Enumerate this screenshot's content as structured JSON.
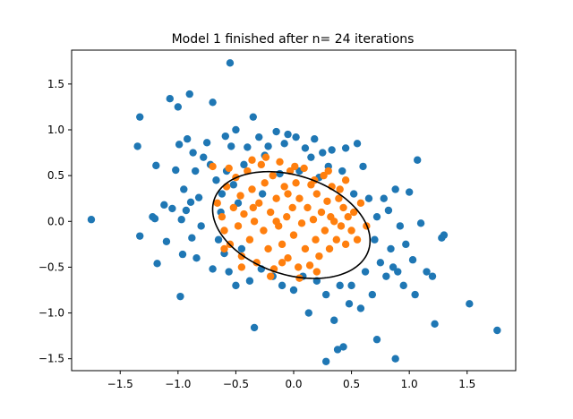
{
  "chart_data": {
    "type": "scatter",
    "title": "Model 1 finished after n= 24 iterations",
    "xlabel": "",
    "ylabel": "",
    "xlim": [
      -1.92,
      1.92
    ],
    "ylim": [
      -1.63,
      1.87
    ],
    "xticks": [
      -1.5,
      -1.0,
      -0.5,
      0.0,
      0.5,
      1.0,
      1.5
    ],
    "xtick_labels": [
      "−1.5",
      "−1.0",
      "−0.5",
      "0.0",
      "0.5",
      "1.0",
      "1.5"
    ],
    "yticks": [
      -1.5,
      -1.0,
      -0.5,
      0.0,
      0.5,
      1.0,
      1.5
    ],
    "ytick_labels": [
      "−1.5",
      "−1.0",
      "−0.5",
      "0.0",
      "0.5",
      "1.0",
      "1.5"
    ],
    "grid": false,
    "legend": false,
    "colors": {
      "series_1": "#1f77b4",
      "series_2": "#ff7f0e",
      "ellipse": "#000000"
    },
    "series": [
      {
        "marker": "circle",
        "color": "#1f77b4",
        "points": [
          [
            -1.75,
            0.02
          ],
          [
            -1.35,
            0.82
          ],
          [
            -1.33,
            1.14
          ],
          [
            -1.33,
            -0.16
          ],
          [
            -1.22,
            0.05
          ],
          [
            -1.2,
            0.03
          ],
          [
            -1.19,
            0.61
          ],
          [
            -1.18,
            -0.46
          ],
          [
            -1.12,
            0.18
          ],
          [
            -1.1,
            -0.22
          ],
          [
            -1.07,
            1.34
          ],
          [
            -1.05,
            0.14
          ],
          [
            -1.02,
            0.56
          ],
          [
            -1.0,
            1.25
          ],
          [
            -0.99,
            0.84
          ],
          [
            -0.98,
            -0.82
          ],
          [
            -0.97,
            0.02
          ],
          [
            -0.96,
            -0.36
          ],
          [
            -0.95,
            0.35
          ],
          [
            -0.93,
            0.12
          ],
          [
            -0.92,
            0.9
          ],
          [
            -0.9,
            1.39
          ],
          [
            -0.89,
            0.21
          ],
          [
            -0.88,
            -0.18
          ],
          [
            -0.87,
            0.75
          ],
          [
            -0.85,
            0.55
          ],
          [
            -0.84,
            -0.4
          ],
          [
            -0.82,
            0.26
          ],
          [
            -0.8,
            -0.05
          ],
          [
            -0.78,
            0.7
          ],
          [
            -0.75,
            0.86
          ],
          [
            -0.72,
            0.62
          ],
          [
            -0.7,
            1.3
          ],
          [
            -0.7,
            -0.52
          ],
          [
            -0.67,
            0.45
          ],
          [
            -0.65,
            -0.2
          ],
          [
            -0.63,
            0.1
          ],
          [
            -0.62,
            0.3
          ],
          [
            -0.6,
            -0.35
          ],
          [
            -0.59,
            0.93
          ],
          [
            -0.58,
            0.55
          ],
          [
            -0.56,
            -0.55
          ],
          [
            -0.55,
            1.73
          ],
          [
            -0.54,
            0.82
          ],
          [
            -0.52,
            0.4
          ],
          [
            -0.5,
            -0.7
          ],
          [
            -0.5,
            1.0
          ],
          [
            -0.48,
            0.2
          ],
          [
            -0.45,
            -0.3
          ],
          [
            -0.43,
            0.62
          ],
          [
            -0.4,
            0.81
          ],
          [
            -0.38,
            -0.65
          ],
          [
            -0.35,
            1.14
          ],
          [
            -0.34,
            -1.16
          ],
          [
            -0.3,
            0.92
          ],
          [
            -0.28,
            -0.52
          ],
          [
            -0.27,
            0.3
          ],
          [
            -0.25,
            0.72
          ],
          [
            -0.22,
            0.82
          ],
          [
            -0.18,
            -0.6
          ],
          [
            -0.15,
            0.98
          ],
          [
            -0.12,
            0.52
          ],
          [
            -0.1,
            -0.7
          ],
          [
            -0.08,
            0.85
          ],
          [
            -0.05,
            0.95
          ],
          [
            0.0,
            -0.75
          ],
          [
            0.02,
            0.92
          ],
          [
            0.05,
            0.55
          ],
          [
            0.08,
            -0.6
          ],
          [
            0.1,
            0.8
          ],
          [
            0.13,
            -1.0
          ],
          [
            0.15,
            0.7
          ],
          [
            0.18,
            0.9
          ],
          [
            0.2,
            -0.65
          ],
          [
            0.22,
            0.48
          ],
          [
            0.25,
            0.75
          ],
          [
            0.28,
            -0.8
          ],
          [
            0.28,
            -1.53
          ],
          [
            0.3,
            0.6
          ],
          [
            0.33,
            0.78
          ],
          [
            0.35,
            -1.08
          ],
          [
            0.38,
            -1.4
          ],
          [
            0.4,
            -0.7
          ],
          [
            0.42,
            0.55
          ],
          [
            0.43,
            -1.37
          ],
          [
            0.45,
            0.8
          ],
          [
            0.48,
            -0.9
          ],
          [
            0.5,
            -0.7
          ],
          [
            0.52,
            0.3
          ],
          [
            0.55,
            0.85
          ],
          [
            0.58,
            -0.95
          ],
          [
            0.6,
            0.6
          ],
          [
            0.62,
            -0.55
          ],
          [
            0.65,
            0.25
          ],
          [
            0.68,
            -0.8
          ],
          [
            0.7,
            -0.2
          ],
          [
            0.72,
            0.05
          ],
          [
            0.72,
            -1.29
          ],
          [
            0.75,
            -0.45
          ],
          [
            0.78,
            0.25
          ],
          [
            0.8,
            -0.6
          ],
          [
            0.82,
            0.12
          ],
          [
            0.84,
            -0.3
          ],
          [
            0.86,
            -0.5
          ],
          [
            0.88,
            0.35
          ],
          [
            0.88,
            -1.5
          ],
          [
            0.9,
            -0.55
          ],
          [
            0.92,
            -0.05
          ],
          [
            0.95,
            -0.7
          ],
          [
            0.97,
            -0.25
          ],
          [
            1.0,
            0.32
          ],
          [
            1.03,
            -0.42
          ],
          [
            1.05,
            -0.8
          ],
          [
            1.07,
            0.67
          ],
          [
            1.1,
            -0.02
          ],
          [
            1.15,
            -0.55
          ],
          [
            1.2,
            -0.6
          ],
          [
            1.22,
            -1.12
          ],
          [
            1.28,
            -0.18
          ],
          [
            1.3,
            -0.15
          ],
          [
            1.52,
            -0.9
          ],
          [
            1.76,
            -1.19
          ]
        ]
      },
      {
        "marker": "circle",
        "color": "#ff7f0e",
        "points": [
          [
            -0.66,
            0.2
          ],
          [
            -0.62,
            0.05
          ],
          [
            -0.6,
            -0.1
          ],
          [
            -0.58,
            0.38
          ],
          [
            -0.55,
            -0.25
          ],
          [
            -0.52,
            0.15
          ],
          [
            -0.5,
            0.48
          ],
          [
            -0.48,
            -0.05
          ],
          [
            -0.46,
            0.28
          ],
          [
            -0.45,
            -0.38
          ],
          [
            -0.43,
            0.08
          ],
          [
            -0.4,
            0.55
          ],
          [
            -0.38,
            -0.2
          ],
          [
            -0.36,
            0.35
          ],
          [
            -0.34,
            0.0
          ],
          [
            -0.32,
            -0.45
          ],
          [
            -0.3,
            0.2
          ],
          [
            -0.28,
            0.62
          ],
          [
            -0.26,
            -0.1
          ],
          [
            -0.25,
            0.42
          ],
          [
            -0.22,
            -0.3
          ],
          [
            -0.2,
            0.1
          ],
          [
            -0.18,
            0.5
          ],
          [
            -0.17,
            -0.52
          ],
          [
            -0.15,
            0.25
          ],
          [
            -0.13,
            -0.05
          ],
          [
            -0.12,
            0.65
          ],
          [
            -0.1,
            -0.25
          ],
          [
            -0.08,
            0.38
          ],
          [
            -0.06,
            0.05
          ],
          [
            -0.05,
            -0.4
          ],
          [
            -0.03,
            0.55
          ],
          [
            -0.01,
            0.15
          ],
          [
            0.0,
            -0.15
          ],
          [
            0.02,
            0.42
          ],
          [
            0.04,
            -0.5
          ],
          [
            0.05,
            0.25
          ],
          [
            0.07,
            -0.02
          ],
          [
            0.09,
            0.58
          ],
          [
            0.1,
            -0.3
          ],
          [
            0.12,
            0.15
          ],
          [
            0.14,
            -0.48
          ],
          [
            0.15,
            0.4
          ],
          [
            0.17,
            0.02
          ],
          [
            0.19,
            -0.2
          ],
          [
            0.2,
            0.3
          ],
          [
            0.22,
            -0.38
          ],
          [
            0.24,
            0.1
          ],
          [
            0.26,
            0.5
          ],
          [
            0.27,
            -0.1
          ],
          [
            0.29,
            0.22
          ],
          [
            0.31,
            -0.3
          ],
          [
            0.33,
            0.38
          ],
          [
            0.35,
            0.0
          ],
          [
            0.37,
            -0.2
          ],
          [
            0.39,
            0.25
          ],
          [
            0.41,
            -0.05
          ],
          [
            0.43,
            0.15
          ],
          [
            0.45,
            -0.25
          ],
          [
            0.47,
            0.05
          ],
          [
            0.5,
            -0.1
          ],
          [
            0.52,
            0.1
          ],
          [
            0.55,
            -0.2
          ],
          [
            -0.7,
            0.6
          ],
          [
            -0.56,
            0.58
          ],
          [
            -0.36,
            0.67
          ],
          [
            -0.24,
            0.7
          ],
          [
            0.01,
            0.6
          ],
          [
            0.3,
            0.55
          ],
          [
            0.45,
            0.45
          ],
          [
            0.58,
            0.2
          ],
          [
            0.63,
            -0.05
          ],
          [
            -0.45,
            -0.5
          ],
          [
            -0.2,
            -0.6
          ],
          [
            0.05,
            -0.62
          ],
          [
            0.2,
            -0.55
          ],
          [
            -0.6,
            -0.3
          ],
          [
            -0.15,
            0.0
          ],
          [
            0.32,
            0.05
          ],
          [
            -0.05,
            0.3
          ],
          [
            0.18,
            0.45
          ],
          [
            -0.35,
            0.15
          ],
          [
            0.4,
            0.35
          ],
          [
            -0.1,
            -0.45
          ]
        ]
      }
    ],
    "ellipse": {
      "center": [
        -0.02,
        -0.04
      ],
      "semi_axes": [
        0.73,
        0.52
      ],
      "rotation_deg": -31
    }
  }
}
